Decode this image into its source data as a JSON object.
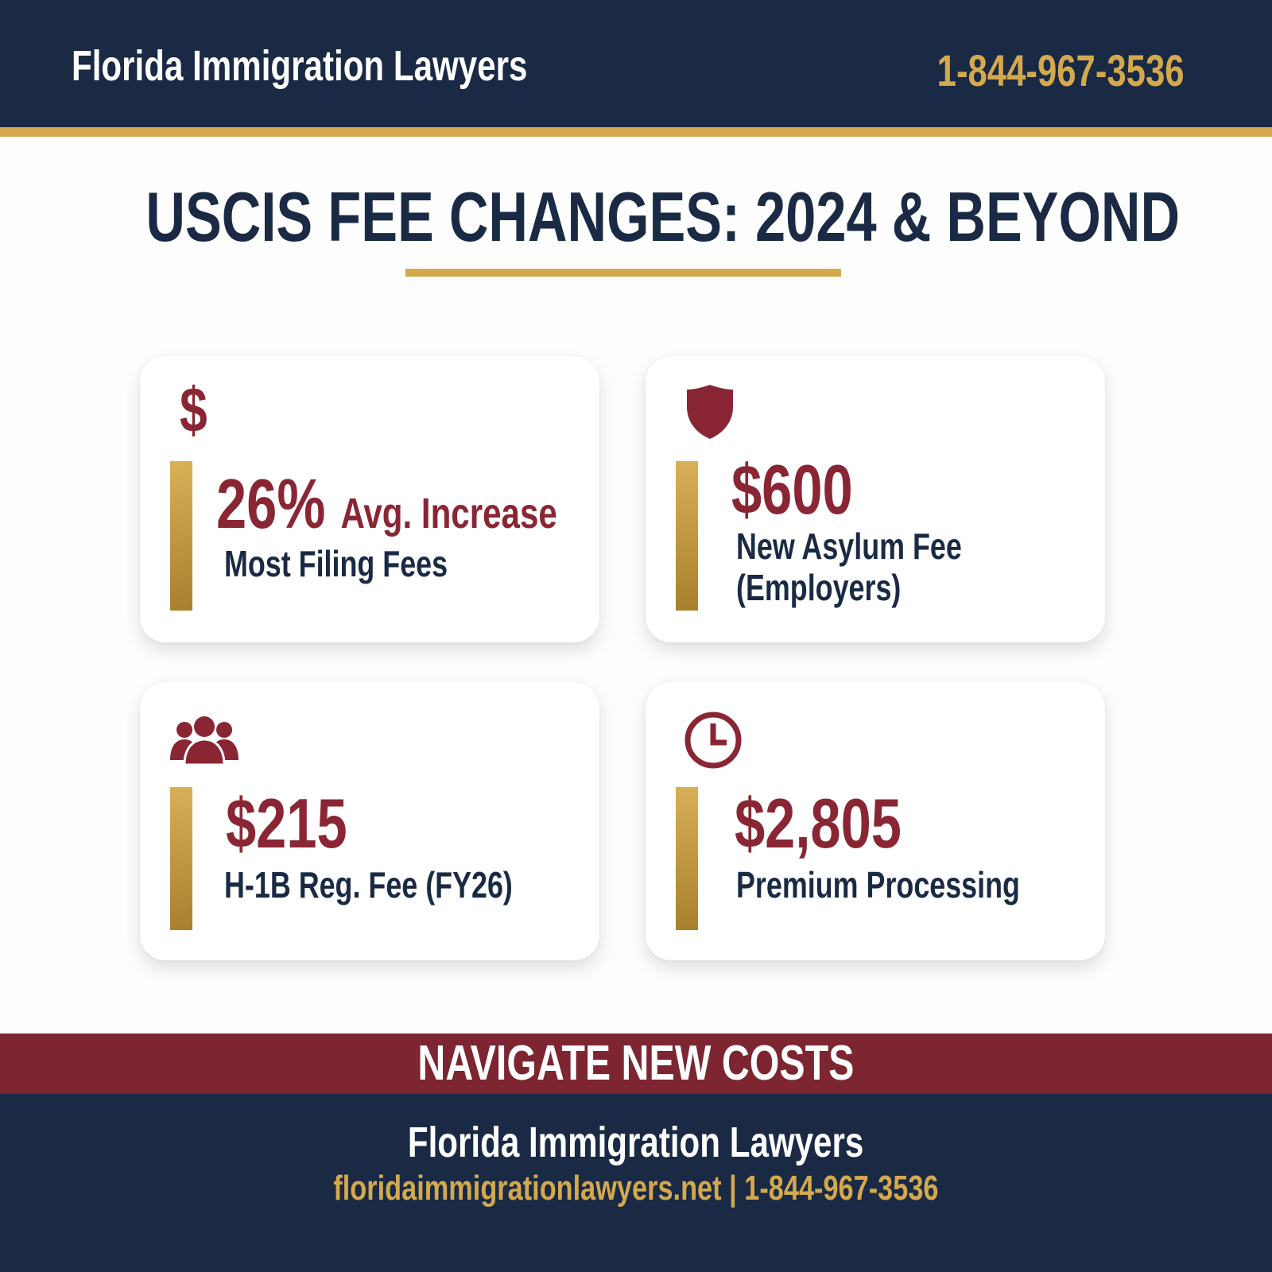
{
  "header": {
    "brand": "Florida Immigration Lawyers",
    "phone": "1-844-967-3536"
  },
  "title": "USCIS FEE CHANGES: 2024 & BEYOND",
  "cards": [
    {
      "icon": "dollar-icon",
      "value": "26%",
      "value_suffix": "Avg. Increase",
      "label": "Most Filing Fees"
    },
    {
      "icon": "shield-icon",
      "value": "$600",
      "label_line1": "New Asylum Fee",
      "label_line2": "(Employers)"
    },
    {
      "icon": "users-icon",
      "value": "$215",
      "label": "H-1B Reg. Fee (FY26)"
    },
    {
      "icon": "clock-icon",
      "value": "$2,805",
      "label": "Premium Processing"
    }
  ],
  "cta": "NAVIGATE NEW COSTS",
  "footer": {
    "brand": "Florida Immigration Lawyers",
    "website": "floridaimmigrationlawyers.net",
    "separator": "|",
    "phone": "1-844-967-3536"
  },
  "colors": {
    "navy": "#1a2a44",
    "gold": "#d4a94e",
    "maroon": "#8a2634"
  }
}
